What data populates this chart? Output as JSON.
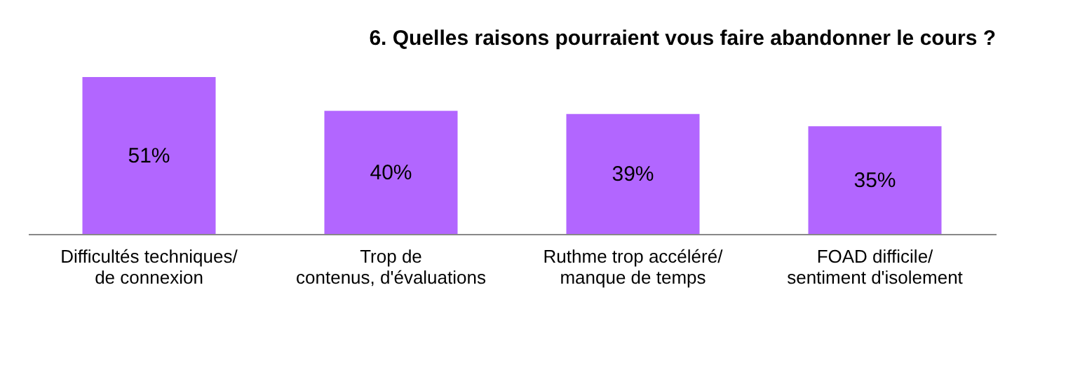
{
  "chart_data": {
    "type": "bar",
    "title": "6.   Quelles raisons pourraient vous faire abandonner le cours ?",
    "categories": [
      "Difficultés techniques/\nde connexion",
      "Trop de\ncontenus, d'évaluations",
      "Ruthme trop accéléré/\nmanque de temps",
      "FOAD difficile/\nsentiment d'isolement"
    ],
    "values": [
      51,
      40,
      39,
      35
    ],
    "value_labels": [
      "51%",
      "40%",
      "39%",
      "35%"
    ],
    "color": "#b266ff",
    "grid": false
  }
}
